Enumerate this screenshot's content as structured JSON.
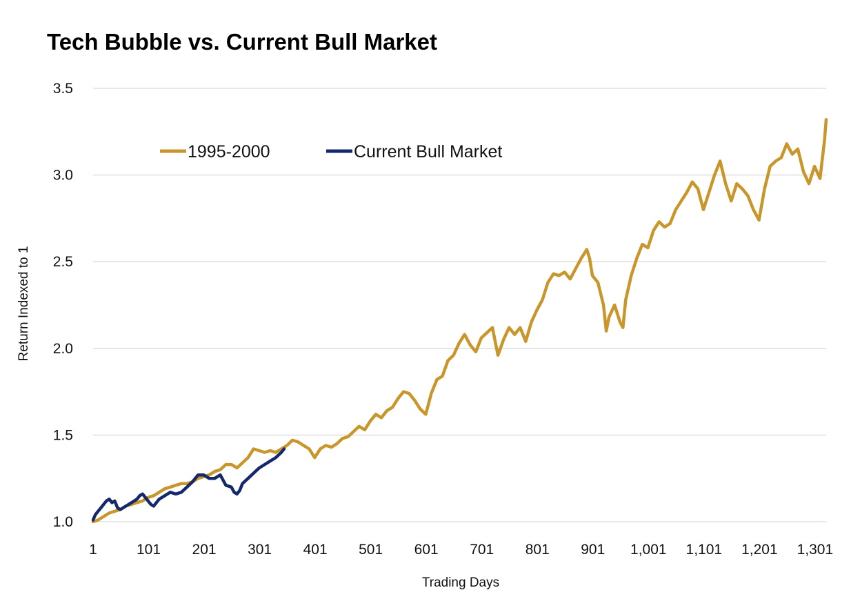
{
  "chart_data": {
    "type": "line",
    "title": "Tech Bubble vs. Current Bull Market",
    "xlabel": "Trading Days",
    "ylabel": "Return Indexed to 1",
    "xlim": [
      1,
      1321
    ],
    "ylim": [
      1.0,
      3.5
    ],
    "xticks": [
      1,
      101,
      201,
      301,
      401,
      501,
      601,
      701,
      801,
      901,
      1001,
      1101,
      1201,
      1301
    ],
    "xtick_labels": [
      "1",
      "101",
      "201",
      "301",
      "401",
      "501",
      "601",
      "701",
      "801",
      "901",
      "1,001",
      "1,101",
      "1,201",
      "1,301"
    ],
    "yticks": [
      1.0,
      1.5,
      2.0,
      2.5,
      3.0,
      3.5
    ],
    "ytick_labels": [
      "1.0",
      "1.5",
      "2.0",
      "2.5",
      "3.0",
      "3.5"
    ],
    "grid": "horizontal",
    "legend_position": "top-left",
    "series": [
      {
        "name": "1995-2000",
        "color": "#C9962B",
        "points": [
          [
            1,
            1.0
          ],
          [
            10,
            1.01
          ],
          [
            20,
            1.03
          ],
          [
            30,
            1.05
          ],
          [
            40,
            1.06
          ],
          [
            50,
            1.07
          ],
          [
            60,
            1.09
          ],
          [
            70,
            1.1
          ],
          [
            80,
            1.11
          ],
          [
            90,
            1.12
          ],
          [
            100,
            1.14
          ],
          [
            110,
            1.15
          ],
          [
            120,
            1.17
          ],
          [
            130,
            1.19
          ],
          [
            140,
            1.2
          ],
          [
            150,
            1.21
          ],
          [
            160,
            1.22
          ],
          [
            170,
            1.22
          ],
          [
            180,
            1.23
          ],
          [
            190,
            1.25
          ],
          [
            200,
            1.26
          ],
          [
            210,
            1.27
          ],
          [
            220,
            1.29
          ],
          [
            230,
            1.3
          ],
          [
            240,
            1.33
          ],
          [
            250,
            1.33
          ],
          [
            260,
            1.31
          ],
          [
            270,
            1.34
          ],
          [
            280,
            1.37
          ],
          [
            290,
            1.42
          ],
          [
            300,
            1.41
          ],
          [
            310,
            1.4
          ],
          [
            320,
            1.41
          ],
          [
            330,
            1.4
          ],
          [
            340,
            1.42
          ],
          [
            350,
            1.44
          ],
          [
            360,
            1.47
          ],
          [
            370,
            1.46
          ],
          [
            380,
            1.44
          ],
          [
            390,
            1.42
          ],
          [
            400,
            1.37
          ],
          [
            410,
            1.42
          ],
          [
            420,
            1.44
          ],
          [
            430,
            1.43
          ],
          [
            440,
            1.45
          ],
          [
            450,
            1.48
          ],
          [
            460,
            1.49
          ],
          [
            470,
            1.52
          ],
          [
            480,
            1.55
          ],
          [
            490,
            1.53
          ],
          [
            500,
            1.58
          ],
          [
            510,
            1.62
          ],
          [
            520,
            1.6
          ],
          [
            530,
            1.64
          ],
          [
            540,
            1.66
          ],
          [
            550,
            1.71
          ],
          [
            560,
            1.75
          ],
          [
            570,
            1.74
          ],
          [
            580,
            1.7
          ],
          [
            590,
            1.65
          ],
          [
            600,
            1.62
          ],
          [
            610,
            1.74
          ],
          [
            620,
            1.82
          ],
          [
            630,
            1.84
          ],
          [
            640,
            1.93
          ],
          [
            650,
            1.96
          ],
          [
            660,
            2.03
          ],
          [
            670,
            2.08
          ],
          [
            680,
            2.02
          ],
          [
            690,
            1.98
          ],
          [
            700,
            2.06
          ],
          [
            710,
            2.09
          ],
          [
            720,
            2.12
          ],
          [
            730,
            1.96
          ],
          [
            740,
            2.05
          ],
          [
            750,
            2.12
          ],
          [
            760,
            2.08
          ],
          [
            770,
            2.12
          ],
          [
            780,
            2.04
          ],
          [
            790,
            2.15
          ],
          [
            800,
            2.22
          ],
          [
            810,
            2.28
          ],
          [
            820,
            2.38
          ],
          [
            830,
            2.43
          ],
          [
            840,
            2.42
          ],
          [
            850,
            2.44
          ],
          [
            860,
            2.4
          ],
          [
            870,
            2.46
          ],
          [
            880,
            2.52
          ],
          [
            890,
            2.57
          ],
          [
            895,
            2.52
          ],
          [
            900,
            2.42
          ],
          [
            910,
            2.38
          ],
          [
            920,
            2.25
          ],
          [
            925,
            2.1
          ],
          [
            930,
            2.18
          ],
          [
            940,
            2.25
          ],
          [
            950,
            2.15
          ],
          [
            955,
            2.12
          ],
          [
            960,
            2.28
          ],
          [
            970,
            2.42
          ],
          [
            980,
            2.52
          ],
          [
            990,
            2.6
          ],
          [
            1000,
            2.58
          ],
          [
            1010,
            2.68
          ],
          [
            1020,
            2.73
          ],
          [
            1030,
            2.7
          ],
          [
            1040,
            2.72
          ],
          [
            1050,
            2.8
          ],
          [
            1060,
            2.85
          ],
          [
            1070,
            2.9
          ],
          [
            1080,
            2.96
          ],
          [
            1090,
            2.92
          ],
          [
            1100,
            2.8
          ],
          [
            1110,
            2.9
          ],
          [
            1120,
            3.0
          ],
          [
            1130,
            3.08
          ],
          [
            1140,
            2.95
          ],
          [
            1150,
            2.85
          ],
          [
            1160,
            2.95
          ],
          [
            1170,
            2.92
          ],
          [
            1180,
            2.88
          ],
          [
            1190,
            2.8
          ],
          [
            1200,
            2.74
          ],
          [
            1210,
            2.92
          ],
          [
            1220,
            3.05
          ],
          [
            1230,
            3.08
          ],
          [
            1240,
            3.1
          ],
          [
            1250,
            3.18
          ],
          [
            1260,
            3.12
          ],
          [
            1270,
            3.15
          ],
          [
            1280,
            3.02
          ],
          [
            1290,
            2.95
          ],
          [
            1300,
            3.05
          ],
          [
            1310,
            2.98
          ],
          [
            1318,
            3.2
          ],
          [
            1321,
            3.32
          ]
        ]
      },
      {
        "name": "Current Bull Market",
        "color": "#14296B",
        "points": [
          [
            1,
            1.01
          ],
          [
            5,
            1.04
          ],
          [
            10,
            1.06
          ],
          [
            15,
            1.08
          ],
          [
            20,
            1.1
          ],
          [
            25,
            1.12
          ],
          [
            30,
            1.13
          ],
          [
            35,
            1.11
          ],
          [
            40,
            1.12
          ],
          [
            45,
            1.08
          ],
          [
            50,
            1.07
          ],
          [
            60,
            1.09
          ],
          [
            70,
            1.11
          ],
          [
            80,
            1.13
          ],
          [
            85,
            1.15
          ],
          [
            90,
            1.16
          ],
          [
            95,
            1.14
          ],
          [
            100,
            1.12
          ],
          [
            105,
            1.1
          ],
          [
            110,
            1.09
          ],
          [
            120,
            1.13
          ],
          [
            130,
            1.15
          ],
          [
            140,
            1.17
          ],
          [
            150,
            1.16
          ],
          [
            160,
            1.17
          ],
          [
            170,
            1.2
          ],
          [
            180,
            1.23
          ],
          [
            190,
            1.27
          ],
          [
            200,
            1.27
          ],
          [
            210,
            1.25
          ],
          [
            220,
            1.25
          ],
          [
            230,
            1.27
          ],
          [
            240,
            1.21
          ],
          [
            250,
            1.2
          ],
          [
            255,
            1.17
          ],
          [
            260,
            1.16
          ],
          [
            265,
            1.18
          ],
          [
            270,
            1.22
          ],
          [
            280,
            1.25
          ],
          [
            290,
            1.28
          ],
          [
            300,
            1.31
          ],
          [
            310,
            1.33
          ],
          [
            320,
            1.35
          ],
          [
            330,
            1.37
          ],
          [
            340,
            1.4
          ],
          [
            345,
            1.42
          ]
        ]
      }
    ]
  }
}
